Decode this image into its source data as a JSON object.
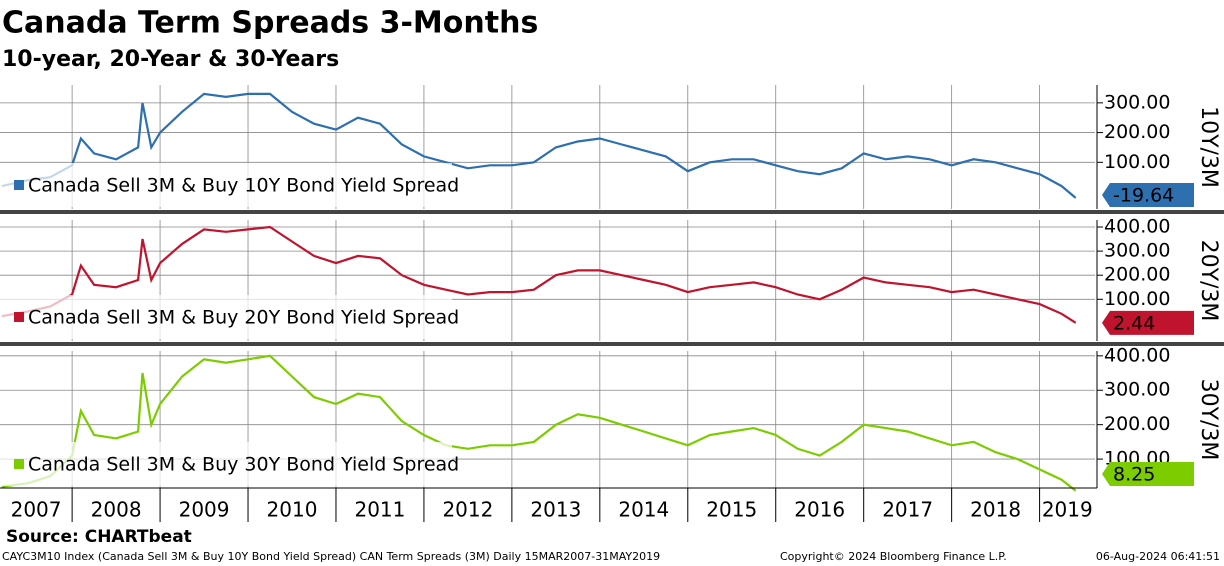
{
  "title": "Canada Term Spreads 3-Months",
  "subtitle": "10-year, 20-Year & 30-Years",
  "source": "Source: CHARTbeat",
  "footer_left": "CAYC3M10 Index (Canada Sell 3M & Buy 10Y Bond Yield Spread) CAN Term Spreads (3M)  Daily 15MAR2007-31MAY2019",
  "footer_center": "Copyright© 2024 Bloomberg Finance L.P.",
  "footer_right": "06-Aug-2024 06:41:51",
  "chart_data": [
    {
      "type": "line",
      "y_label": "10Y/3M",
      "grid": true,
      "legend": "lower left",
      "xlim": [
        2007.18,
        2019.63
      ],
      "ylim": [
        -57,
        360
      ],
      "yticks": [
        {
          "value": 100,
          "label": "100.00"
        },
        {
          "value": 200,
          "label": "200.00"
        },
        {
          "value": 300,
          "label": "300.00"
        }
      ],
      "x": [
        2007.2,
        2007.5,
        2007.75,
        2008.0,
        2008.1,
        2008.25,
        2008.5,
        2008.75,
        2008.8,
        2008.9,
        2009.0,
        2009.25,
        2009.5,
        2009.75,
        2010.0,
        2010.25,
        2010.5,
        2010.75,
        2011.0,
        2011.25,
        2011.5,
        2011.75,
        2012.0,
        2012.25,
        2012.5,
        2012.75,
        2013.0,
        2013.25,
        2013.5,
        2013.75,
        2014.0,
        2014.25,
        2014.5,
        2014.75,
        2015.0,
        2015.25,
        2015.5,
        2015.75,
        2016.0,
        2016.25,
        2016.5,
        2016.75,
        2017.0,
        2017.25,
        2017.5,
        2017.75,
        2018.0,
        2018.25,
        2018.5,
        2018.75,
        2019.0,
        2019.25,
        2019.41
      ],
      "series": [
        {
          "name": "Canada Sell 3M & Buy 10Y Bond Yield Spread",
          "color": "#2e6fb0",
          "values": [
            20,
            40,
            50,
            90,
            180,
            130,
            110,
            150,
            300,
            150,
            200,
            270,
            330,
            320,
            330,
            330,
            270,
            230,
            210,
            250,
            230,
            160,
            120,
            100,
            80,
            90,
            90,
            100,
            150,
            170,
            180,
            160,
            140,
            120,
            70,
            100,
            110,
            110,
            90,
            70,
            60,
            80,
            130,
            110,
            120,
            110,
            90,
            110,
            100,
            80,
            60,
            20,
            -19.64
          ]
        }
      ]
    },
    {
      "type": "line",
      "y_label": "20Y/3M",
      "grid": true,
      "legend": "lower left",
      "xlim": [
        2007.18,
        2019.63
      ],
      "ylim": [
        -73,
        429
      ],
      "yticks": [
        {
          "value": 100,
          "label": "100.00"
        },
        {
          "value": 200,
          "label": "200.00"
        },
        {
          "value": 300,
          "label": "300.00"
        },
        {
          "value": 400,
          "label": "400.00"
        }
      ],
      "x": [
        2007.2,
        2007.5,
        2007.75,
        2008.0,
        2008.1,
        2008.25,
        2008.5,
        2008.75,
        2008.8,
        2008.9,
        2009.0,
        2009.25,
        2009.5,
        2009.75,
        2010.0,
        2010.25,
        2010.5,
        2010.75,
        2011.0,
        2011.25,
        2011.5,
        2011.75,
        2012.0,
        2012.25,
        2012.5,
        2012.75,
        2013.0,
        2013.25,
        2013.5,
        2013.75,
        2014.0,
        2014.25,
        2014.5,
        2014.75,
        2015.0,
        2015.25,
        2015.5,
        2015.75,
        2016.0,
        2016.25,
        2016.5,
        2016.75,
        2017.0,
        2017.25,
        2017.5,
        2017.75,
        2018.0,
        2018.25,
        2018.5,
        2018.75,
        2019.0,
        2019.25,
        2019.41
      ],
      "series": [
        {
          "name": "Canada Sell 3M & Buy 20Y Bond Yield Spread",
          "color": "#c0142e",
          "values": [
            30,
            50,
            70,
            120,
            240,
            160,
            150,
            180,
            350,
            180,
            250,
            330,
            390,
            380,
            390,
            400,
            340,
            280,
            250,
            280,
            270,
            200,
            160,
            140,
            120,
            130,
            130,
            140,
            200,
            220,
            220,
            200,
            180,
            160,
            130,
            150,
            160,
            170,
            150,
            120,
            100,
            140,
            190,
            170,
            160,
            150,
            130,
            140,
            120,
            100,
            80,
            40,
            2.44
          ]
        }
      ]
    },
    {
      "type": "line",
      "y_label": "30Y/3M",
      "grid": true,
      "legend": "lower left",
      "xlim": [
        2007.18,
        2019.63
      ],
      "ylim": [
        16,
        414
      ],
      "yticks": [
        {
          "value": 100,
          "label": "100.00"
        },
        {
          "value": 200,
          "label": "200.00"
        },
        {
          "value": 300,
          "label": "300.00"
        },
        {
          "value": 400,
          "label": "400.00"
        }
      ],
      "xticks": [
        2007,
        2008,
        2009,
        2010,
        2011,
        2012,
        2013,
        2014,
        2015,
        2016,
        2017,
        2018,
        2019
      ],
      "x": [
        2007.2,
        2007.5,
        2007.75,
        2008.0,
        2008.1,
        2008.25,
        2008.5,
        2008.75,
        2008.8,
        2008.9,
        2009.0,
        2009.25,
        2009.5,
        2009.75,
        2010.0,
        2010.25,
        2010.5,
        2010.75,
        2011.0,
        2011.25,
        2011.5,
        2011.75,
        2012.0,
        2012.25,
        2012.5,
        2012.75,
        2013.0,
        2013.25,
        2013.5,
        2013.75,
        2014.0,
        2014.25,
        2014.5,
        2014.75,
        2015.0,
        2015.25,
        2015.5,
        2015.75,
        2016.0,
        2016.25,
        2016.5,
        2016.75,
        2017.0,
        2017.25,
        2017.5,
        2017.75,
        2018.0,
        2018.25,
        2018.5,
        2018.75,
        2019.0,
        2019.25,
        2019.41
      ],
      "series": [
        {
          "name": "Canada Sell 3M & Buy 30Y Bond Yield Spread",
          "color": "#7ccc00",
          "values": [
            20,
            30,
            50,
            110,
            240,
            170,
            160,
            180,
            350,
            200,
            260,
            340,
            390,
            380,
            390,
            400,
            340,
            280,
            260,
            290,
            280,
            210,
            170,
            140,
            130,
            140,
            140,
            150,
            200,
            230,
            220,
            200,
            180,
            160,
            140,
            170,
            180,
            190,
            170,
            130,
            110,
            150,
            200,
            190,
            180,
            160,
            140,
            150,
            120,
            100,
            70,
            40,
            8.25
          ]
        }
      ]
    }
  ]
}
